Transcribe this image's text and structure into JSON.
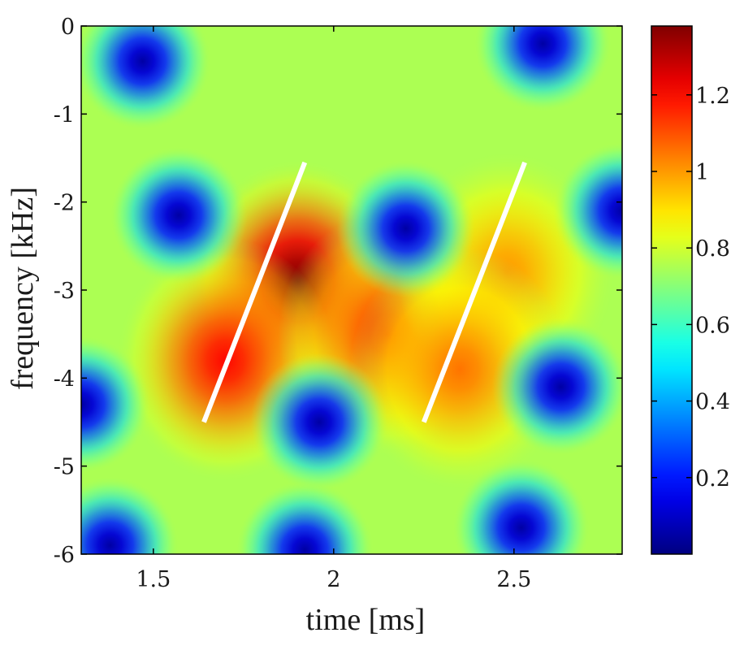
{
  "chart_data": {
    "type": "heatmap",
    "xlabel": "time [ms]",
    "ylabel": "frequency [kHz]",
    "xlim": [
      1.3,
      2.8
    ],
    "ylim": [
      -6,
      0
    ],
    "xticks": [
      "1.5",
      "2",
      "2.5"
    ],
    "yticks": [
      "0",
      "-1",
      "-2",
      "-3",
      "-4",
      "-5",
      "-6"
    ],
    "colorbar": {
      "range": [
        0,
        1.38
      ],
      "ticks": [
        "0.2",
        "0.4",
        "0.6",
        "0.8",
        "1",
        "1.2"
      ],
      "colormap": "jet"
    },
    "grid": false,
    "baseline_value": 0.75,
    "peaks": [
      {
        "t": 1.9,
        "f": -2.9,
        "v": 1.38
      },
      {
        "t": 1.7,
        "f": -3.8,
        "v": 1.2
      },
      {
        "t": 2.15,
        "f": -3.5,
        "v": 1.15
      },
      {
        "t": 2.48,
        "f": -2.8,
        "v": 1.0
      },
      {
        "t": 2.35,
        "f": -3.9,
        "v": 1.05
      }
    ],
    "minima": [
      {
        "t": 1.47,
        "f": -0.4
      },
      {
        "t": 2.58,
        "f": -0.2
      },
      {
        "t": 1.57,
        "f": -2.15
      },
      {
        "t": 2.2,
        "f": -2.3
      },
      {
        "t": 2.8,
        "f": -2.1
      },
      {
        "t": 1.3,
        "f": -4.3
      },
      {
        "t": 1.96,
        "f": -4.5
      },
      {
        "t": 2.63,
        "f": -4.1
      },
      {
        "t": 1.38,
        "f": -5.9
      },
      {
        "t": 1.92,
        "f": -5.95
      },
      {
        "t": 2.52,
        "f": -5.7
      }
    ],
    "lines": [
      {
        "x": [
          1.64,
          1.92
        ],
        "y": [
          -4.5,
          -1.55
        ],
        "color": "#ffffff"
      },
      {
        "x": [
          2.25,
          2.53
        ],
        "y": [
          -4.5,
          -1.55
        ],
        "color": "#ffffff"
      }
    ]
  }
}
